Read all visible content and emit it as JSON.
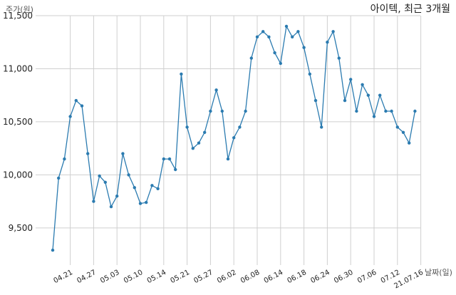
{
  "chart_data": {
    "type": "line",
    "title": "아이텍, 최근 3개월",
    "ylabel": "주가(원)",
    "xlabel": "날짜(일)",
    "ylim": [
      9150,
      11500
    ],
    "yticks": [
      9500,
      10000,
      10500,
      11000,
      11500
    ],
    "ytick_labels": [
      "9,500",
      "10,000",
      "10,500",
      "11,000",
      "11,500"
    ],
    "xtick_labels": [
      "04.21",
      "04.27",
      "05.03",
      "05.10",
      "05.14",
      "05.21",
      "05.27",
      "06.02",
      "06.08",
      "06.14",
      "06.18",
      "06.24",
      "06.30",
      "07.06",
      "07.12",
      "21.07.16"
    ],
    "xtick_index": [
      3,
      7,
      11,
      15,
      19,
      23,
      27,
      31,
      35,
      39,
      43,
      47,
      51,
      55,
      59,
      63
    ],
    "grid": true,
    "series": [
      {
        "values": [
          9290,
          9970,
          10150,
          10550,
          10700,
          10650,
          10200,
          9750,
          9990,
          9930,
          9700,
          9800,
          10200,
          10000,
          9880,
          9730,
          9740,
          9900,
          9870,
          10150,
          10150,
          10050,
          10950,
          10450,
          10250,
          10300,
          10400,
          10600,
          10800,
          10600,
          10150,
          10350,
          10450,
          10600,
          11100,
          11300,
          11350,
          11300,
          11150,
          11050,
          11400,
          11300,
          11350,
          11200,
          10950,
          10700,
          10450,
          11250,
          11350,
          11100,
          10700,
          10900,
          10600,
          10850,
          10750,
          10550,
          10750,
          10600,
          10600,
          10450,
          10400,
          10300,
          10600
        ]
      }
    ]
  }
}
